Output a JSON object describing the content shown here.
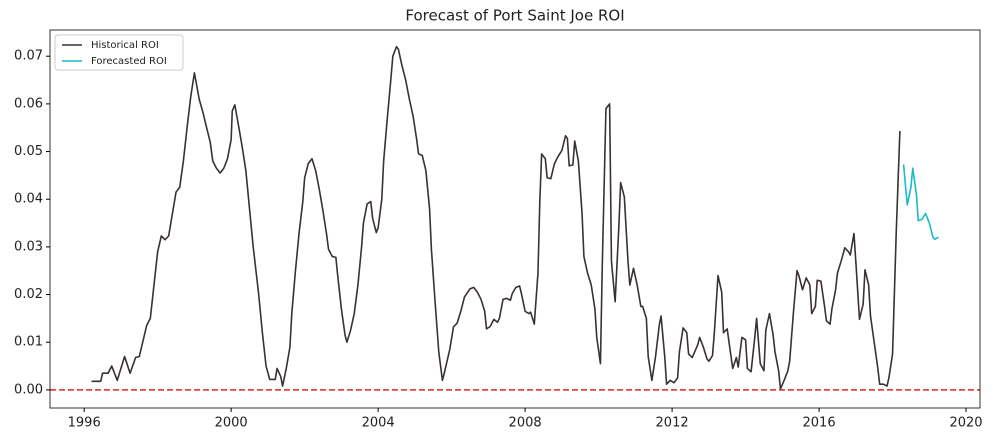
{
  "chart_data": {
    "type": "line",
    "title": "Forecast of Port Saint Joe ROI",
    "xlim": [
      1995.07,
      2020.38
    ],
    "ylim": [
      -0.0038,
      0.0755
    ],
    "xticks": [
      1996,
      2000,
      2004,
      2008,
      2012,
      2016,
      2020
    ],
    "yticks": [
      {
        "value": 0,
        "label": "0.00"
      },
      {
        "value": 0.01,
        "label": "0.01"
      },
      {
        "value": 0.02,
        "label": "0.02"
      },
      {
        "value": 0.03,
        "label": "0.03"
      },
      {
        "value": 0.04,
        "label": "0.04"
      },
      {
        "value": 0.05,
        "label": "0.05"
      },
      {
        "value": 0.06,
        "label": "0.06"
      },
      {
        "value": 0.07,
        "label": "0.07"
      }
    ],
    "legend": "upper left",
    "hline": {
      "value": 0,
      "color": "#d62728",
      "style": "dashed"
    },
    "series": [
      {
        "name": "Historical ROI",
        "color": "#3a3132",
        "x": [
          1996.2,
          1996.45,
          1996.5,
          1996.65,
          1996.75,
          1996.9,
          1997.1,
          1997.25,
          1997.4,
          1997.5,
          1997.7,
          1997.8,
          1997.9,
          1998.0,
          1998.1,
          1998.2,
          1998.3,
          1998.5,
          1998.6,
          1998.7,
          1998.8,
          1998.9,
          1999.0,
          1999.13,
          1999.24,
          1999.3,
          1999.43,
          1999.5,
          1999.6,
          1999.7,
          1999.8,
          1999.9,
          2000.0,
          2000.03,
          2000.1,
          2000.2,
          2000.3,
          2000.4,
          2000.5,
          2000.6,
          2000.75,
          2000.85,
          2000.95,
          2001.05,
          2001.2,
          2001.25,
          2001.35,
          2001.4,
          2001.5,
          2001.6,
          2001.65,
          2001.75,
          2001.85,
          2001.95,
          2002.0,
          2002.1,
          2002.2,
          2002.3,
          2002.4,
          2002.5,
          2002.6,
          2002.65,
          2002.75,
          2002.85,
          2002.9,
          2003.0,
          2003.1,
          2003.15,
          2003.25,
          2003.35,
          2003.45,
          2003.55,
          2003.6,
          2003.7,
          2003.8,
          2003.85,
          2003.95,
          2004.0,
          2004.1,
          2004.15,
          2004.25,
          2004.35,
          2004.4,
          2004.5,
          2004.55,
          2004.65,
          2004.75,
          2004.85,
          2004.95,
          2005.05,
          2005.1,
          2005.2,
          2005.3,
          2005.4,
          2005.45,
          2005.55,
          2005.65,
          2005.75,
          2005.8,
          2005.95,
          2006.05,
          2006.15,
          2006.25,
          2006.35,
          2006.5,
          2006.6,
          2006.7,
          2006.8,
          2006.9,
          2006.95,
          2007.05,
          2007.15,
          2007.25,
          2007.3,
          2007.4,
          2007.5,
          2007.6,
          2007.65,
          2007.75,
          2007.85,
          2007.9,
          2008.0,
          2008.1,
          2008.15,
          2008.25,
          2008.35,
          2008.4,
          2008.45,
          2008.55,
          2008.6,
          2008.7,
          2008.8,
          2008.9,
          2009.0,
          2009.1,
          2009.15,
          2009.2,
          2009.3,
          2009.35,
          2009.45,
          2009.55,
          2009.6,
          2009.7,
          2009.8,
          2009.9,
          2009.95,
          2010.05,
          2010.1,
          2010.2,
          2010.3,
          2010.35,
          2010.45,
          2010.55,
          2010.6,
          2010.7,
          2010.8,
          2010.85,
          2010.95,
          2011.05,
          2011.15,
          2011.2,
          2011.3,
          2011.35,
          2011.45,
          2011.55,
          2011.65,
          2011.7,
          2011.8,
          2011.85,
          2011.95,
          2012.05,
          2012.15,
          2012.2,
          2012.3,
          2012.4,
          2012.45,
          2012.55,
          2012.7,
          2012.75,
          2012.85,
          2012.95,
          2013.0,
          2013.1,
          2013.15,
          2013.25,
          2013.35,
          2013.4,
          2013.5,
          2013.6,
          2013.65,
          2013.75,
          2013.8,
          2013.9,
          2014.0,
          2014.05,
          2014.15,
          2014.25,
          2014.3,
          2014.4,
          2014.5,
          2014.55,
          2014.65,
          2014.75,
          2014.8,
          2014.9,
          2014.95,
          2015.05,
          2015.15,
          2015.2,
          2015.3,
          2015.4,
          2015.45,
          2015.55,
          2015.65,
          2015.75,
          2015.8,
          2015.9,
          2015.95,
          2016.05,
          2016.15,
          2016.2,
          2016.3,
          2016.35,
          2016.45,
          2016.5,
          2016.6,
          2016.7,
          2016.8,
          2016.85,
          2016.95,
          2017.0,
          2017.1,
          2017.2,
          2017.25,
          2017.35,
          2017.4,
          2017.5,
          2017.6,
          2017.65,
          2017.75,
          2017.85,
          2017.9,
          2018.0,
          2018.1,
          2018.2
        ],
        "values": [
          0.0018,
          0.0018,
          0.0035,
          0.0035,
          0.005,
          0.002,
          0.007,
          0.0035,
          0.0068,
          0.007,
          0.0135,
          0.015,
          0.022,
          0.029,
          0.0323,
          0.0315,
          0.0323,
          0.0415,
          0.0425,
          0.048,
          0.055,
          0.0615,
          0.0665,
          0.061,
          0.058,
          0.056,
          0.052,
          0.048,
          0.0465,
          0.0455,
          0.0465,
          0.0485,
          0.0525,
          0.0585,
          0.0598,
          0.0555,
          0.051,
          0.046,
          0.038,
          0.03,
          0.02,
          0.012,
          0.005,
          0.0022,
          0.0022,
          0.0045,
          0.0028,
          0.0008,
          0.0045,
          0.009,
          0.016,
          0.025,
          0.033,
          0.0395,
          0.0445,
          0.0475,
          0.0485,
          0.046,
          0.042,
          0.0375,
          0.0325,
          0.0295,
          0.028,
          0.0278,
          0.024,
          0.017,
          0.0115,
          0.01,
          0.0125,
          0.016,
          0.022,
          0.03,
          0.035,
          0.039,
          0.0395,
          0.036,
          0.033,
          0.034,
          0.04,
          0.048,
          0.057,
          0.0655,
          0.07,
          0.072,
          0.0715,
          0.068,
          0.065,
          0.061,
          0.0575,
          0.0525,
          0.0495,
          0.0492,
          0.046,
          0.038,
          0.0295,
          0.0185,
          0.008,
          0.002,
          0.0035,
          0.0085,
          0.0132,
          0.014,
          0.0165,
          0.0195,
          0.0212,
          0.0215,
          0.0205,
          0.019,
          0.0165,
          0.0128,
          0.0133,
          0.0148,
          0.0142,
          0.015,
          0.019,
          0.0192,
          0.0188,
          0.0202,
          0.0215,
          0.0218,
          0.0202,
          0.0165,
          0.016,
          0.0163,
          0.0138,
          0.0245,
          0.0395,
          0.0495,
          0.0485,
          0.0445,
          0.0443,
          0.0475,
          0.049,
          0.0502,
          0.0533,
          0.0528,
          0.047,
          0.0472,
          0.0522,
          0.048,
          0.037,
          0.028,
          0.0245,
          0.022,
          0.017,
          0.011,
          0.0055,
          0.026,
          0.059,
          0.06,
          0.027,
          0.0185,
          0.034,
          0.0435,
          0.0405,
          0.027,
          0.022,
          0.0255,
          0.022,
          0.0175,
          0.0175,
          0.015,
          0.007,
          0.002,
          0.007,
          0.0135,
          0.0155,
          0.007,
          0.0012,
          0.002,
          0.0015,
          0.0025,
          0.008,
          0.013,
          0.012,
          0.0075,
          0.0068,
          0.0095,
          0.011,
          0.009,
          0.0065,
          0.006,
          0.0072,
          0.012,
          0.024,
          0.0205,
          0.012,
          0.0128,
          0.0072,
          0.0045,
          0.0068,
          0.0048,
          0.011,
          0.0105,
          0.0045,
          0.0038,
          0.011,
          0.015,
          0.0055,
          0.004,
          0.0125,
          0.016,
          0.0115,
          0.008,
          0.004,
          0.0002,
          0.002,
          0.004,
          0.006,
          0.016,
          0.025,
          0.024,
          0.021,
          0.0235,
          0.022,
          0.016,
          0.0175,
          0.023,
          0.0228,
          0.0175,
          0.0145,
          0.0138,
          0.017,
          0.021,
          0.0245,
          0.027,
          0.0298,
          0.029,
          0.0283,
          0.0328,
          0.027,
          0.0148,
          0.018,
          0.0252,
          0.022,
          0.0155,
          0.01,
          0.0045,
          0.0012,
          0.0012,
          0.0008,
          0.0025,
          0.0075,
          0.033,
          0.0543
        ]
      },
      {
        "name": "Forecasted ROI",
        "color": "#17bcc6",
        "x": [
          2018.3,
          2018.4,
          2018.5,
          2018.55,
          2018.65,
          2018.7,
          2018.8,
          2018.9,
          2019.0,
          2019.1,
          2019.15,
          2019.25
        ],
        "values": [
          0.0473,
          0.0388,
          0.0425,
          0.0465,
          0.041,
          0.0355,
          0.0358,
          0.037,
          0.035,
          0.032,
          0.0316,
          0.032
        ]
      }
    ]
  }
}
